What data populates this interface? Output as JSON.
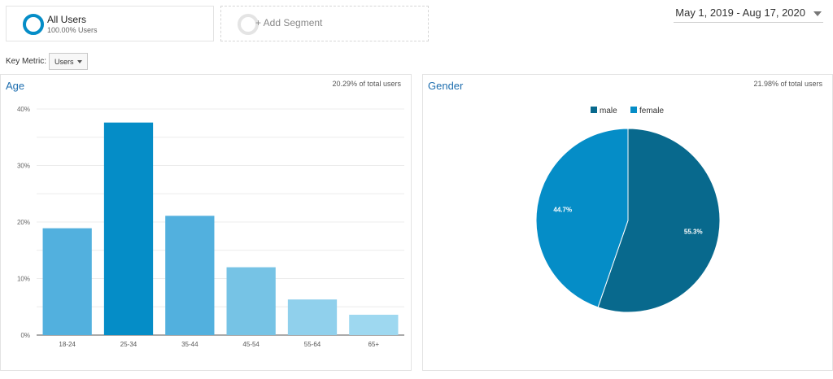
{
  "segments": {
    "all_users": {
      "title": "All Users",
      "subtitle": "100.00% Users"
    },
    "add_segment": {
      "label": "+ Add Segment"
    }
  },
  "date_range": "May 1, 2019 - Aug 17, 2020",
  "key_metric": {
    "label": "Key Metric:",
    "selected": "Users"
  },
  "age_panel": {
    "title": "Age",
    "share": "20.29% of total users"
  },
  "gender_panel": {
    "title": "Gender",
    "share": "21.98% of total users"
  },
  "colors": {
    "accent": "#058dc7",
    "title_blue": "#1e6eaf",
    "male": "#08698d",
    "female": "#058dc7"
  },
  "chart_data": [
    {
      "type": "bar",
      "categories": [
        "18-24",
        "25-34",
        "35-44",
        "45-54",
        "55-64",
        "65+"
      ],
      "values": [
        18.9,
        37.6,
        21.1,
        12.0,
        6.3,
        3.6
      ],
      "colors": [
        "#52b0de",
        "#058dc7",
        "#52b0de",
        "#76c3e5",
        "#90d0ec",
        "#9ed8f0"
      ],
      "ylim": [
        0,
        40
      ],
      "yticks": [
        "0%",
        "10%",
        "20%",
        "30%",
        "40%"
      ],
      "grid": true
    },
    {
      "type": "pie",
      "labels": [
        "male",
        "female"
      ],
      "values": [
        55.3,
        44.7
      ],
      "value_labels": [
        "55.3%",
        "44.7%"
      ],
      "colors": [
        "#08698d",
        "#058dc7"
      ],
      "legend": "top"
    }
  ]
}
